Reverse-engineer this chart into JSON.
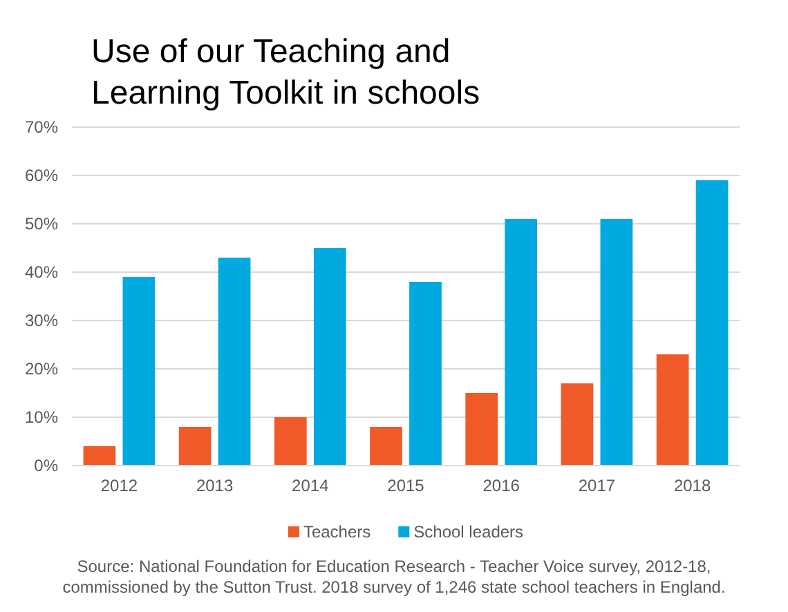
{
  "chart_data": {
    "type": "bar",
    "title": "Use of our Teaching and Learning Toolkit in schools",
    "categories": [
      "2012",
      "2013",
      "2014",
      "2015",
      "2016",
      "2017",
      "2018"
    ],
    "series": [
      {
        "name": "Teachers",
        "color": "#f05a28",
        "values": [
          4,
          8,
          10,
          8,
          15,
          17,
          23
        ]
      },
      {
        "name": "School leaders",
        "color": "#00a9e0",
        "values": [
          39,
          43,
          45,
          38,
          51,
          51,
          59
        ]
      }
    ],
    "ylim": [
      0,
      70
    ],
    "yticks": [
      {
        "value": 0,
        "label": "0%"
      },
      {
        "value": 10,
        "label": "10%"
      },
      {
        "value": 20,
        "label": "20%"
      },
      {
        "value": 30,
        "label": "30%"
      },
      {
        "value": 40,
        "label": "40%"
      },
      {
        "value": 50,
        "label": "50%"
      },
      {
        "value": 60,
        "label": "60%"
      },
      {
        "value": 70,
        "label": "70%"
      }
    ],
    "grid": "y",
    "legend": "bottom",
    "annotations": [
      "Source: National Foundation for Education Research - Teacher Voice survey, 2012-18, commissioned by the Sutton Trust. 2018 survey of 1,246 state school teachers in England."
    ]
  }
}
